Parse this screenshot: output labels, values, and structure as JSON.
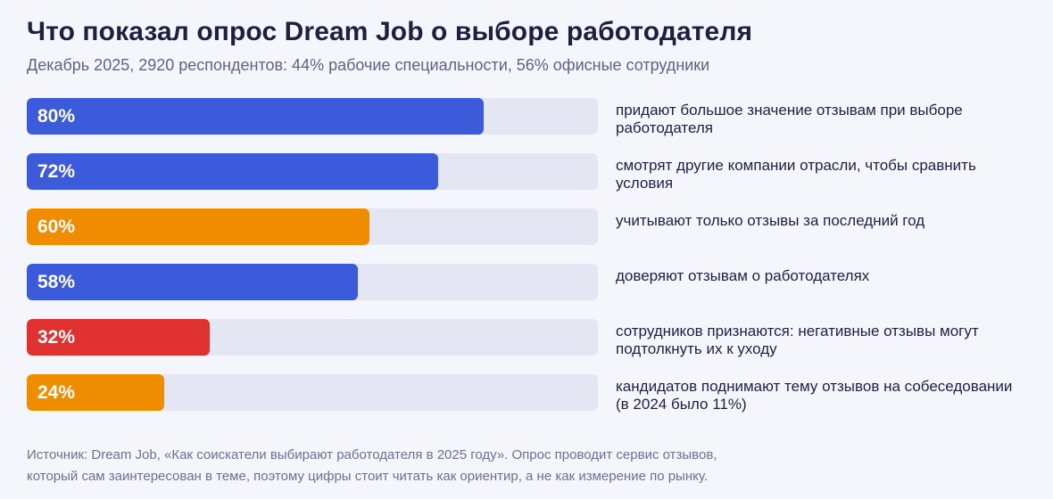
{
  "title": "Что показал опрос Dream Job о выборе работодателя",
  "subtitle": "Декабрь 2025, 2920 респондентов: 44% рабочие специальности, 56% офисные сотрудники",
  "colors": {
    "blue": "#3b5bdb",
    "orange": "#f08c00",
    "red": "#e03131",
    "track": "#e4e6f4"
  },
  "chart_data": {
    "type": "bar",
    "orientation": "horizontal",
    "xlim": [
      0,
      100
    ],
    "bars": [
      {
        "value": 80,
        "value_label": "80%",
        "label": "придают большое значение отзывам при выборе работодателя",
        "color": "blue"
      },
      {
        "value": 72,
        "value_label": "72%",
        "label": "смотрят другие компании отрасли, чтобы сравнить условия",
        "color": "blue"
      },
      {
        "value": 60,
        "value_label": "60%",
        "label": "учитывают только отзывы за последний год",
        "color": "orange"
      },
      {
        "value": 58,
        "value_label": "58%",
        "label": "доверяют отзывам о работодателях",
        "color": "blue"
      },
      {
        "value": 32,
        "value_label": "32%",
        "label": "сотрудников признаются: негативные отзывы могут подтолкнуть их к уходу",
        "color": "red"
      },
      {
        "value": 24,
        "value_label": "24%",
        "label": "кандидатов поднимают тему отзывов на собеседовании (в 2024 было 11%)",
        "color": "orange"
      }
    ]
  },
  "source": {
    "line1": "Источник: Dream Job, «Как соискатели выбирают работодателя в 2025 году». Опрос проводит сервис отзывов,",
    "line2": "который сам заинтересован в теме, поэтому цифры стоит читать как ориентир, а не как измерение по рынку."
  }
}
